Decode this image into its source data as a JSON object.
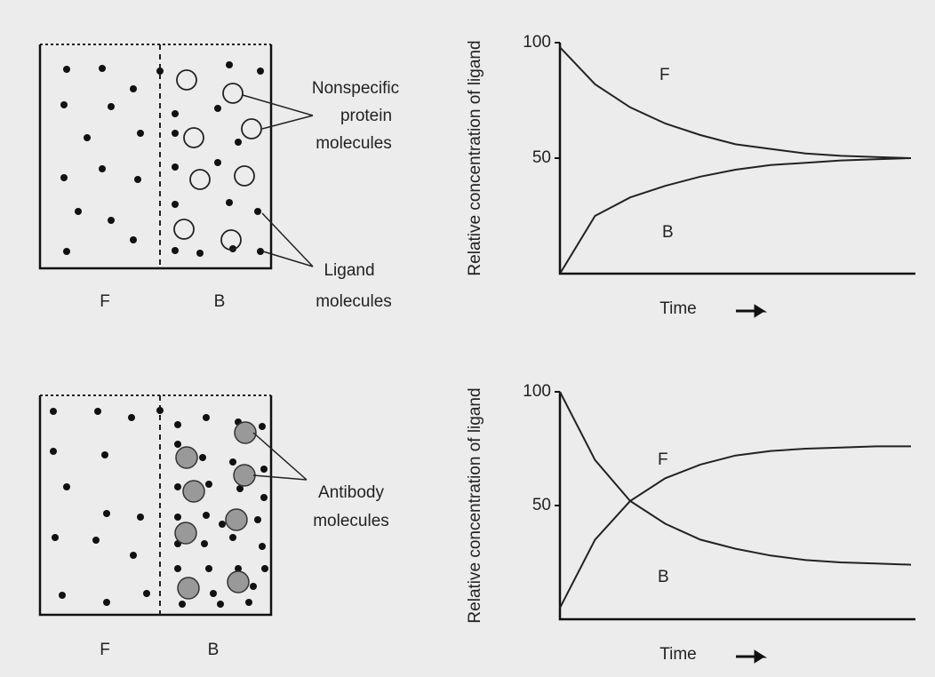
{
  "diagrams": [
    {
      "left_label": "F",
      "right_label": "B",
      "callouts": [
        [
          "Nonspecific",
          "protein",
          "molecules"
        ],
        [
          "Ligand",
          "molecules"
        ]
      ]
    },
    {
      "left_label": "F",
      "right_label": "B",
      "callouts": [
        [
          "Antibody",
          "molecules"
        ]
      ]
    }
  ],
  "chart_data": [
    {
      "type": "line",
      "ylabel": "Relative concentration of ligand",
      "xlabel": "Time",
      "categories": [
        null,
        null,
        null,
        null,
        null,
        null,
        null,
        null,
        null,
        null,
        null
      ],
      "ylim": [
        0,
        100
      ],
      "yticks": [
        50,
        100
      ],
      "series": [
        {
          "name": "F",
          "color": "#222222",
          "values": [
            98,
            82,
            72,
            65,
            60,
            56,
            54,
            52,
            51,
            50.5,
            50
          ]
        },
        {
          "name": "B",
          "color": "#222222",
          "values": [
            0,
            25,
            33,
            38,
            42,
            45,
            47,
            48,
            49,
            49.5,
            50
          ]
        }
      ]
    },
    {
      "type": "line",
      "ylabel": "Relative concentration of ligand",
      "xlabel": "Time",
      "categories": [
        null,
        null,
        null,
        null,
        null,
        null,
        null,
        null,
        null,
        null,
        null
      ],
      "ylim": [
        0,
        100
      ],
      "yticks": [
        50,
        100
      ],
      "series": [
        {
          "name": "F",
          "color": "#222222",
          "values": [
            100,
            70,
            52,
            42,
            35,
            31,
            28,
            26,
            25,
            24.5,
            24
          ]
        },
        {
          "name": "B",
          "color": "#222222",
          "values": [
            5,
            35,
            52,
            62,
            68,
            72,
            74,
            75,
            75.5,
            76,
            76
          ]
        }
      ]
    }
  ]
}
